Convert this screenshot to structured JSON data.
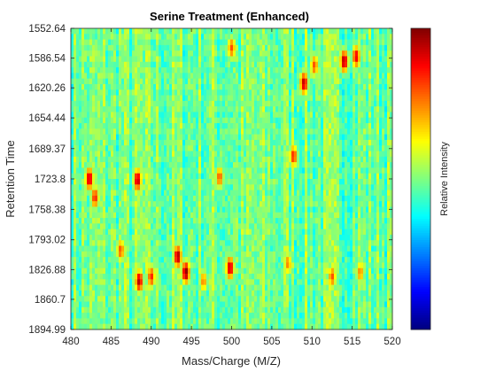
{
  "chart_data": {
    "type": "heatmap",
    "title": "Serine Treatment (Enhanced)",
    "xlabel": "Mass/Charge (M/Z)",
    "ylabel": "Retention Time",
    "colorbar_label": "Relative Intensity",
    "colormap": "jet",
    "xlim": [
      480,
      520
    ],
    "ylim": [
      1552.64,
      1894.99
    ],
    "y_direction": "reversed",
    "x_ticks": [
      "480",
      "485",
      "490",
      "495",
      "500",
      "505",
      "510",
      "515",
      "520"
    ],
    "y_ticks": [
      "1552.64",
      "1586.54",
      "1620.26",
      "1654.44",
      "1689.37",
      "1723.8",
      "1758.38",
      "1793.02",
      "1826.88",
      "1860.7",
      "1894.99"
    ],
    "background_intensity_range": [
      0.35,
      0.62
    ],
    "peaks": [
      {
        "mz": 482.3,
        "rt": 1723.8,
        "intensity": 0.95
      },
      {
        "mz": 483.0,
        "rt": 1745.0,
        "intensity": 0.85
      },
      {
        "mz": 486.2,
        "rt": 1805.0,
        "intensity": 0.8
      },
      {
        "mz": 488.3,
        "rt": 1725.0,
        "intensity": 0.95
      },
      {
        "mz": 488.5,
        "rt": 1840.0,
        "intensity": 0.95
      },
      {
        "mz": 490.0,
        "rt": 1835.0,
        "intensity": 0.85
      },
      {
        "mz": 493.3,
        "rt": 1812.0,
        "intensity": 0.97
      },
      {
        "mz": 494.3,
        "rt": 1830.0,
        "intensity": 1.0
      },
      {
        "mz": 499.8,
        "rt": 1825.0,
        "intensity": 0.95
      },
      {
        "mz": 500.0,
        "rt": 1575.0,
        "intensity": 0.8
      },
      {
        "mz": 498.5,
        "rt": 1722.0,
        "intensity": 0.8
      },
      {
        "mz": 507.7,
        "rt": 1698.0,
        "intensity": 0.85
      },
      {
        "mz": 509.0,
        "rt": 1615.0,
        "intensity": 0.95
      },
      {
        "mz": 510.3,
        "rt": 1595.0,
        "intensity": 0.8
      },
      {
        "mz": 514.0,
        "rt": 1590.0,
        "intensity": 0.97
      },
      {
        "mz": 515.5,
        "rt": 1585.0,
        "intensity": 0.9
      },
      {
        "mz": 512.5,
        "rt": 1835.0,
        "intensity": 0.8
      },
      {
        "mz": 516.0,
        "rt": 1830.0,
        "intensity": 0.75
      },
      {
        "mz": 496.5,
        "rt": 1840.0,
        "intensity": 0.75
      },
      {
        "mz": 507.0,
        "rt": 1820.0,
        "intensity": 0.75
      }
    ]
  }
}
